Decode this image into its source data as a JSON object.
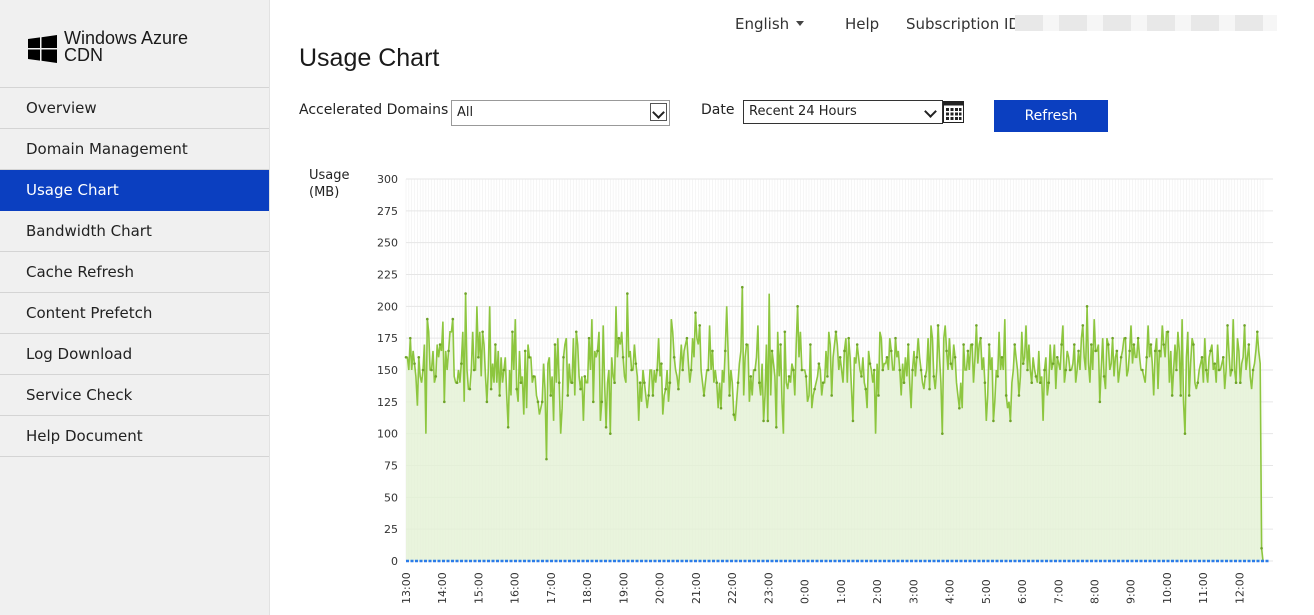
{
  "brand": {
    "line1": "Windows Azure",
    "line2": "CDN",
    "logo_color": "#000000"
  },
  "nav": {
    "items": [
      {
        "label": "Overview",
        "active": false
      },
      {
        "label": "Domain Management",
        "active": false
      },
      {
        "label": "Usage Chart",
        "active": true
      },
      {
        "label": "Bandwidth Chart",
        "active": false
      },
      {
        "label": "Cache Refresh",
        "active": false
      },
      {
        "label": "Content Prefetch",
        "active": false
      },
      {
        "label": "Log Download",
        "active": false
      },
      {
        "label": "Service Check",
        "active": false
      },
      {
        "label": "Help Document",
        "active": false
      }
    ]
  },
  "topbar": {
    "language": "English",
    "help": "Help",
    "subscription_label": "Subscription ID:"
  },
  "page": {
    "title": "Usage Chart"
  },
  "filters": {
    "domains_label": "Accelerated Domains",
    "domains_value": "All",
    "date_label": "Date",
    "date_value": "Recent 24 Hours",
    "refresh_label": "Refresh"
  },
  "colors": {
    "accent": "#0b3fc0",
    "series_green": "#8dc63f",
    "series_blue": "#2b7ce9"
  },
  "chart_data": {
    "type": "line",
    "ylabel": "Usage (MB)",
    "ylim": [
      0,
      300
    ],
    "yticks": [
      0,
      25,
      50,
      75,
      100,
      125,
      150,
      175,
      200,
      225,
      250,
      275,
      300
    ],
    "xticks": [
      "13:00",
      "14:00",
      "15:00",
      "16:00",
      "17:00",
      "18:00",
      "19:00",
      "20:00",
      "21:00",
      "22:00",
      "23:00",
      "0:00",
      "1:00",
      "2:00",
      "3:00",
      "4:00",
      "5:00",
      "6:00",
      "7:00",
      "8:00",
      "9:00",
      "10:00",
      "11:00",
      "12:00"
    ],
    "grid": true,
    "series": [
      {
        "values": [
          160,
          160,
          150,
          175,
          150,
          165,
          155,
          145,
          122,
          160,
          145,
          140,
          150,
          170,
          100,
          190,
          180,
          150,
          150,
          165,
          140,
          145,
          170,
          160,
          170,
          165,
          188,
          125,
          165,
          150,
          165,
          180,
          180,
          190,
          145,
          140,
          140,
          150,
          140,
          155,
          180,
          125,
          210,
          150,
          135,
          135,
          150,
          180,
          150,
          150,
          200,
          160,
          180,
          145,
          180,
          170,
          145,
          125,
          150,
          200,
          135,
          155,
          140,
          170,
          140,
          165,
          130,
          160,
          140,
          150,
          160,
          130,
          105,
          150,
          130,
          180,
          150,
          190,
          135,
          125,
          165,
          140,
          145,
          115,
          165,
          120,
          170,
          160,
          160,
          140,
          145,
          145,
          130,
          125,
          115,
          120,
          125,
          155,
          135,
          80,
          155,
          160,
          130,
          145,
          110,
          170,
          140,
          175,
          140,
          100,
          120,
          160,
          170,
          175,
          130,
          155,
          140,
          140,
          175,
          130,
          180,
          170,
          145,
          135,
          145,
          110,
          145,
          140,
          140,
          175,
          150,
          190,
          125,
          165,
          160,
          165,
          180,
          110,
          125,
          185,
          140,
          105,
          140,
          150,
          100,
          160,
          145,
          140,
          200,
          160,
          175,
          170,
          180,
          160,
          145,
          140,
          210,
          160,
          165,
          150,
          150,
          170,
          155,
          145,
          110,
          140,
          125,
          150,
          140,
          130,
          120,
          130,
          150,
          150,
          130,
          150,
          140,
          150,
          175,
          145,
          155,
          115,
          130,
          135,
          150,
          125,
          140,
          190,
          180,
          160,
          150,
          145,
          135,
          150,
          170,
          150,
          165,
          170,
          175,
          155,
          140,
          150,
          175,
          160,
          195,
          175,
          170,
          185,
          150,
          140,
          130,
          140,
          150,
          150,
          185,
          150,
          165,
          140,
          150,
          140,
          120,
          140,
          120,
          150,
          140,
          165,
          200,
          165,
          130,
          150,
          140,
          115,
          110,
          125,
          140,
          155,
          165,
          215,
          130,
          160,
          170,
          170,
          125,
          145,
          130,
          150,
          150,
          160,
          185,
          140,
          130,
          155,
          110,
          130,
          170,
          110,
          210,
          130,
          165,
          155,
          145,
          105,
          180,
          145,
          170,
          125,
          100,
          180,
          140,
          135,
          145,
          140,
          155,
          150,
          130,
          170,
          200,
          160,
          180,
          150,
          150,
          150,
          145,
          125,
          130,
          170,
          120,
          130,
          135,
          140,
          145,
          155,
          150,
          130,
          140,
          140,
          165,
          145,
          180,
          170,
          130,
          160,
          170,
          180,
          170,
          150,
          160,
          150,
          140,
          165,
          175,
          140,
          175,
          160,
          135,
          110,
          160,
          155,
          170,
          160,
          150,
          145,
          160,
          140,
          135,
          120,
          165,
          155,
          150,
          140,
          150,
          100,
          155,
          130,
          180,
          175,
          150,
          155,
          155,
          160,
          150,
          175,
          165,
          150,
          150,
          175,
          160,
          165,
          150,
          130,
          155,
          140,
          160,
          145,
          170,
          140,
          120,
          150,
          165,
          145,
          160,
          175,
          160,
          150,
          140,
          135,
          145,
          150,
          175,
          135,
          185,
          175,
          145,
          135,
          150,
          185,
          160,
          140,
          100,
          175,
          185,
          165,
          150,
          175,
          155,
          150,
          170,
          160,
          140,
          130,
          120,
          140,
          120,
          170,
          150,
          150,
          165,
          150,
          170,
          170,
          140,
          160,
          185,
          155,
          170,
          175,
          150,
          160,
          140,
          110,
          130,
          170,
          150,
          160,
          110,
          125,
          150,
          145,
          180,
          150,
          160,
          150,
          190,
          130,
          120,
          125,
          110,
          140,
          150,
          170,
          160,
          150,
          130,
          145,
          180,
          155,
          160,
          185,
          150,
          170,
          150,
          140,
          160,
          150,
          145,
          140,
          165,
          140,
          145,
          110,
          150,
          160,
          130,
          140,
          170,
          150,
          155,
          170,
          135,
          160,
          155,
          150,
          170,
          185,
          140,
          150,
          165,
          160,
          150,
          150,
          155,
          170,
          140,
          150,
          165,
          150,
          175,
          185,
          160,
          150,
          200,
          155,
          140,
          170,
          150,
          190,
          165,
          165,
          170,
          125,
          150,
          175,
          145,
          135,
          175,
          170,
          150,
          155,
          175,
          145,
          160,
          165,
          140,
          150,
          160,
          165,
          175,
          175,
          145,
          150,
          165,
          185,
          155,
          170,
          160,
          160,
          175,
          160,
          150,
          150,
          145,
          140,
          160,
          185,
          160,
          170,
          155,
          130,
          165,
          175,
          135,
          165,
          160,
          185,
          170,
          160,
          180,
          180,
          140,
          165,
          130,
          150,
          170,
          150,
          180,
          165,
          130,
          190,
          125,
          100,
          160,
          180,
          130,
          155,
          175,
          170,
          140,
          135,
          140,
          150,
          155,
          160,
          140,
          175,
          150,
          140,
          160,
          165,
          170,
          150,
          155,
          140,
          170,
          150,
          150,
          155,
          160,
          135,
          150,
          185,
          165,
          145,
          150,
          190,
          150,
          140,
          175,
          165,
          140,
          155,
          160,
          185,
          150,
          160,
          170,
          145,
          135,
          150,
          155,
          165,
          180,
          165,
          155,
          10,
          0
        ]
      },
      {
        "values": [
          0,
          0
        ]
      }
    ]
  }
}
